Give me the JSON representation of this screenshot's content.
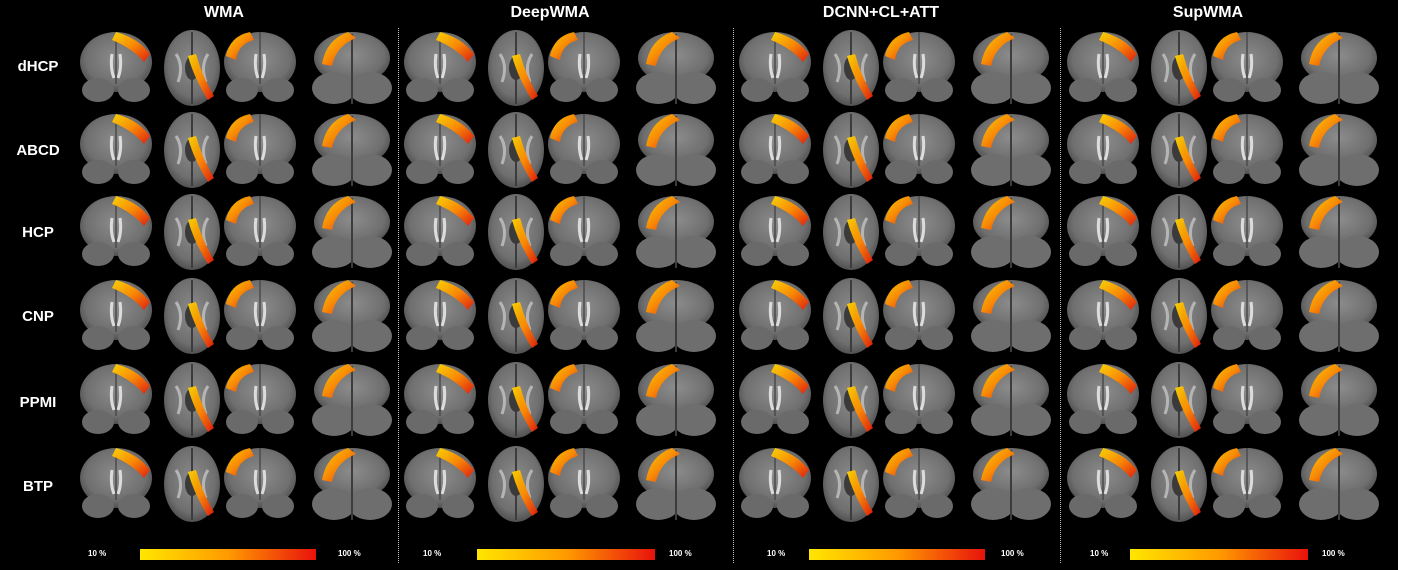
{
  "columns": [
    "WMA",
    "DeepWMA",
    "DCNN+CL+ATT",
    "SupWMA"
  ],
  "rows": [
    "dHCP",
    "ABCD",
    "HCP",
    "CNP",
    "PPMI",
    "BTP"
  ],
  "colorbar": {
    "min_label": "10 %",
    "max_label": "100 %",
    "min_color": "#ffe600",
    "max_color": "#e8120c"
  },
  "colors": {
    "background": "#000000",
    "brain_light": "#9a9a9a",
    "brain_dark": "#4a4a4a"
  }
}
